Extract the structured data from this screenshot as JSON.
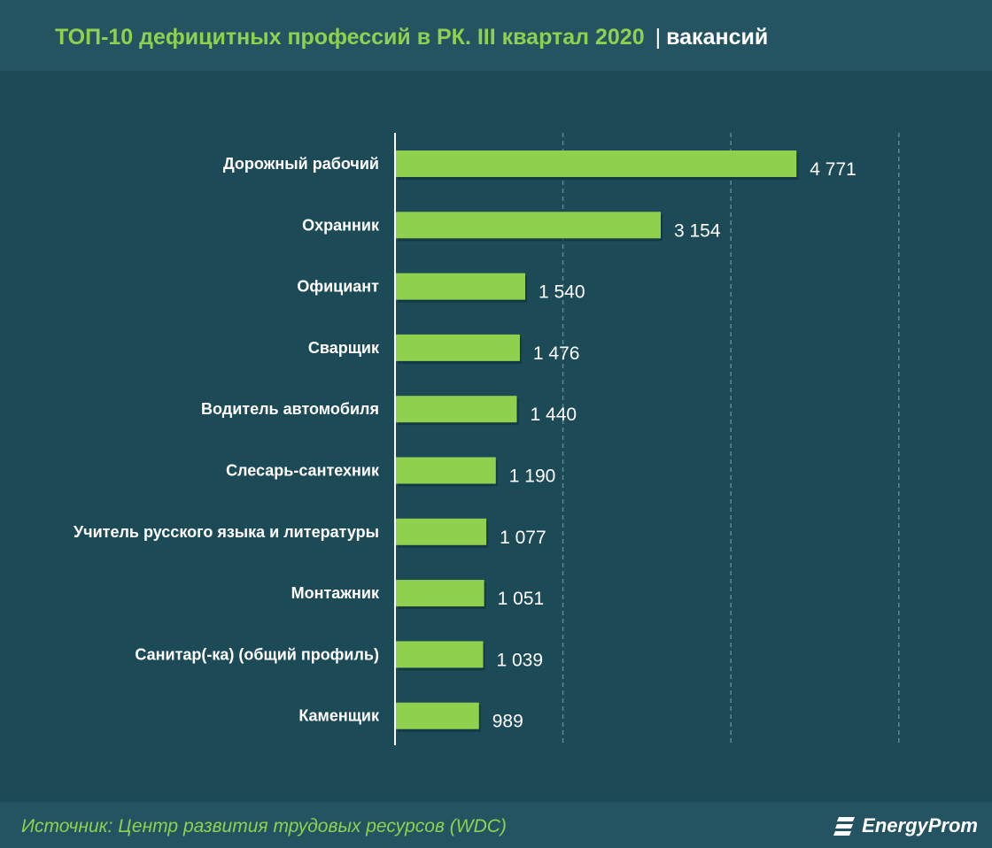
{
  "header": {
    "title": "ТОП-10 дефицитных профессий в РК. III квартал 2020",
    "separator": "|",
    "unit": "вакансий"
  },
  "footer": {
    "source": "Источник: Центр развития трудовых ресурсов (WDC)",
    "logo_text": "EnergyProm"
  },
  "colors": {
    "background": "#1d4a57",
    "bar": "#8fd14f",
    "title": "#8fd14f"
  },
  "chart_data": {
    "type": "bar",
    "orientation": "horizontal",
    "title": "ТОП-10 дефицитных профессий в РК. III квартал 2020",
    "unit": "вакансий",
    "categories": [
      "Дорожный рабочий",
      "Охранник",
      "Официант",
      "Сварщик",
      "Водитель автомобиля",
      "Слесарь-сантехник",
      "Учитель русского языка и литературы",
      "Монтажник",
      "Санитар(-ка) (общий профиль)",
      "Каменщик"
    ],
    "values": [
      4771,
      3154,
      1540,
      1476,
      1440,
      1190,
      1077,
      1051,
      1039,
      989
    ],
    "value_labels": [
      "4 771",
      "3 154",
      "1 540",
      "1 476",
      "1 440",
      "1 190",
      "1 077",
      "1 051",
      "1 039",
      "989"
    ],
    "xlim": [
      0,
      6000
    ],
    "gridlines": [
      2000,
      4000,
      6000
    ],
    "grid": true
  }
}
